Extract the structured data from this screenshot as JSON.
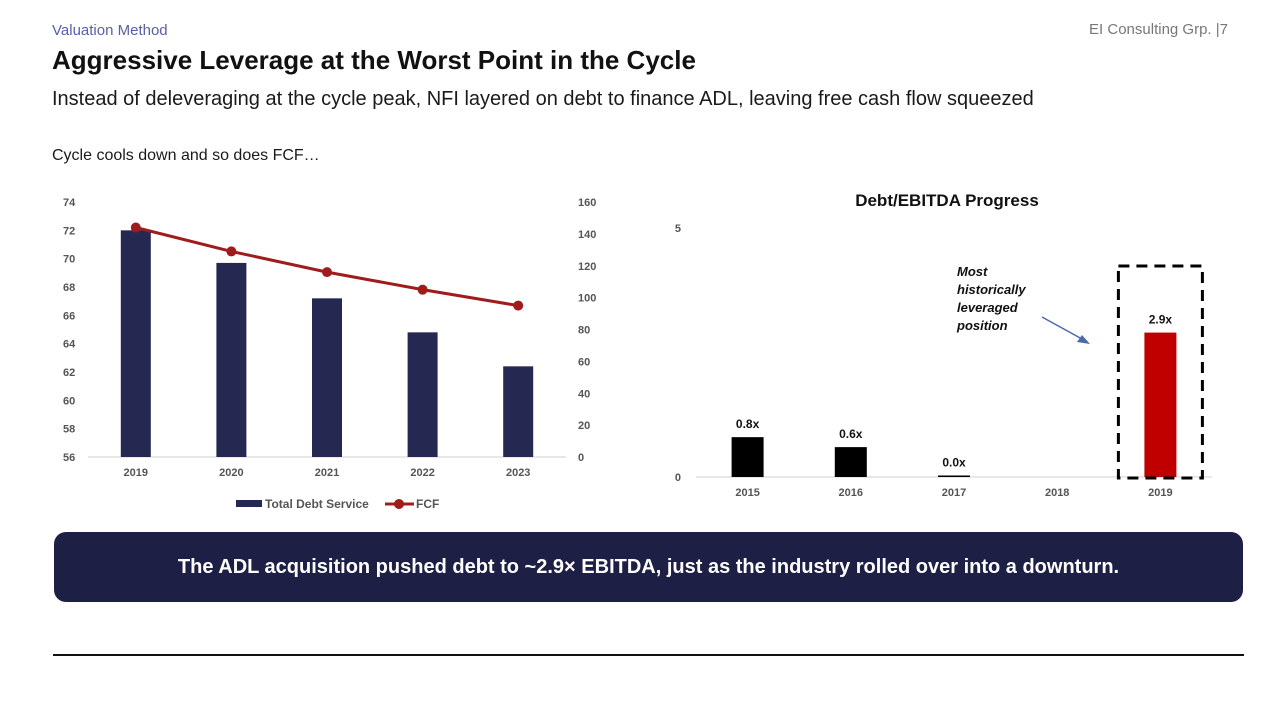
{
  "header": {
    "section": "Valuation Method",
    "firm_page": "EI Consulting Grp. |7",
    "title": "Aggressive Leverage at the Worst Point in the Cycle",
    "subtitle": "Instead of deleveraging at the cycle peak, NFI layered on debt to finance ADL, leaving free cash flow squeezed",
    "caption": "Cycle cools down and so does FCF…"
  },
  "takeaway": "The ADL acquisition pushed debt to ~2.9× EBITDA, just as the industry rolled over into a downturn.",
  "chart_data": [
    {
      "type": "bar+line",
      "categories": [
        "2019",
        "2020",
        "2021",
        "2022",
        "2023"
      ],
      "series": [
        {
          "name": "Total Debt Service",
          "type": "bar",
          "axis": "left",
          "color": "#252850",
          "values": [
            72.0,
            69.7,
            67.2,
            64.8,
            62.4
          ]
        },
        {
          "name": "FCF",
          "type": "line",
          "axis": "right",
          "color": "#a01c1c",
          "values": [
            144,
            129,
            116,
            105,
            95
          ]
        }
      ],
      "y_left": {
        "min": 56,
        "max": 74,
        "ticks": [
          56,
          58,
          60,
          62,
          64,
          66,
          68,
          70,
          72,
          74
        ]
      },
      "y_right": {
        "min": 0,
        "max": 160,
        "ticks": [
          0,
          20,
          40,
          60,
          80,
          100,
          120,
          140,
          160
        ]
      },
      "legend": "bottom",
      "grid": false
    },
    {
      "type": "bar",
      "title": "Debt/EBITDA Progress",
      "categories": [
        "2015",
        "2016",
        "2017",
        "2018",
        "2019"
      ],
      "values": [
        0.8,
        0.6,
        0.0,
        null,
        2.9
      ],
      "data_labels": [
        "0.8x",
        "0.6x",
        "0.0x",
        "",
        "2.9x"
      ],
      "colors": [
        "#000000",
        "#000000",
        "#000000",
        "#000000",
        "#c00000"
      ],
      "y": {
        "min": 0,
        "max": 5,
        "ticks": [
          0,
          5
        ]
      },
      "annotation": {
        "lines": [
          "Most",
          "historically",
          "leveraged",
          "position"
        ],
        "target": "2019"
      },
      "grid": false
    }
  ]
}
